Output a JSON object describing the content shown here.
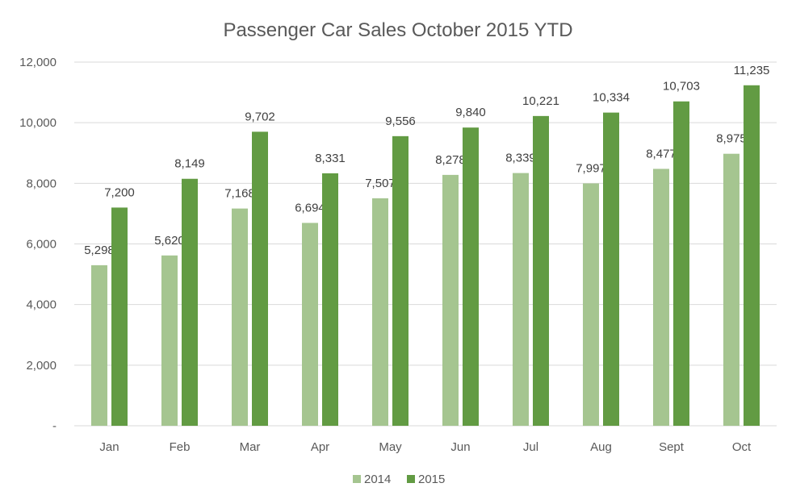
{
  "chart_data": {
    "type": "bar",
    "title": "Passenger Car Sales October 2015 YTD",
    "xlabel": "",
    "ylabel": "",
    "categories": [
      "Jan",
      "Feb",
      "Mar",
      "Apr",
      "May",
      "Jun",
      "Jul",
      "Aug",
      "Sept",
      "Oct"
    ],
    "series": [
      {
        "name": "2014",
        "color": "#A5C590",
        "values": [
          5298,
          5620,
          7168,
          6694,
          7507,
          8278,
          8339,
          7997,
          8477,
          8975
        ],
        "labels": [
          "5,298",
          "5,620",
          "7,168",
          "6,694",
          "7,507",
          "8,278",
          "8,339",
          "7,997",
          "8,477",
          "8,975"
        ]
      },
      {
        "name": "2015",
        "color": "#629B43",
        "values": [
          7200,
          8149,
          9702,
          8331,
          9556,
          9840,
          10221,
          10334,
          10703,
          11235
        ],
        "labels": [
          "7,200",
          "8,149",
          "9,702",
          "8,331",
          "9,556",
          "9,840",
          "10,221",
          "10,334",
          "10,703",
          "11,235"
        ]
      }
    ],
    "ylim": [
      0,
      12000
    ],
    "yticks": [
      0,
      2000,
      4000,
      6000,
      8000,
      10000,
      12000
    ],
    "ytick_labels": [
      "-",
      "2,000",
      "4,000",
      "6,000",
      "8,000",
      "10,000",
      "12,000"
    ],
    "grid": true,
    "legend": "bottom",
    "gridline_color": "#D9D9D9"
  }
}
